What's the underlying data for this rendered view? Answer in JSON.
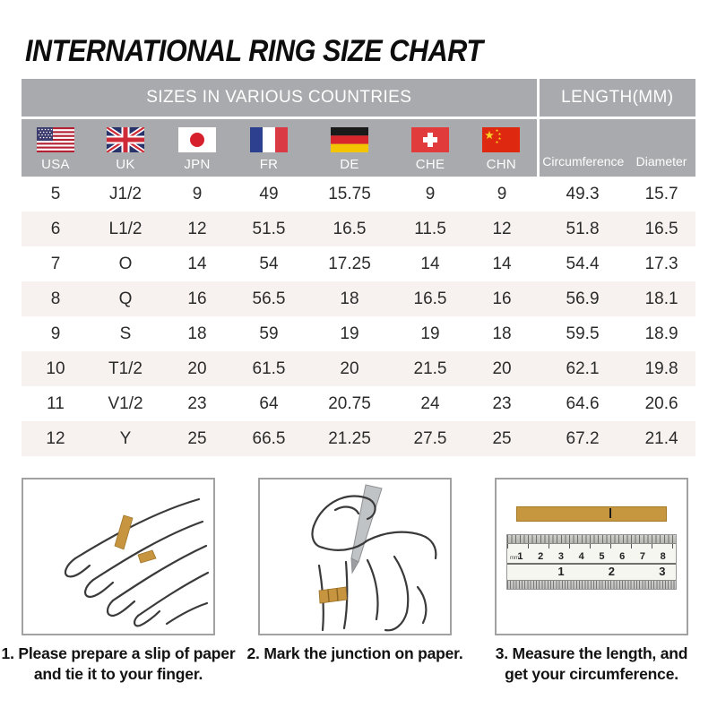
{
  "title": "INTERNATIONAL RING SIZE CHART",
  "table": {
    "sizes_header": "SIZES IN VARIOUS COUNTRIES",
    "length_header": "LENGTH(MM)",
    "countries": [
      {
        "code": "USA"
      },
      {
        "code": "UK"
      },
      {
        "code": "JPN"
      },
      {
        "code": "FR"
      },
      {
        "code": "DE"
      },
      {
        "code": "CHE"
      },
      {
        "code": "CHN"
      }
    ],
    "length_columns": [
      "Circumference",
      "Diameter"
    ],
    "rows": [
      [
        "5",
        "J1/2",
        "9",
        "49",
        "15.75",
        "9",
        "9",
        "49.3",
        "15.7"
      ],
      [
        "6",
        "L1/2",
        "12",
        "51.5",
        "16.5",
        "11.5",
        "12",
        "51.8",
        "16.5"
      ],
      [
        "7",
        "O",
        "14",
        "54",
        "17.25",
        "14",
        "14",
        "54.4",
        "17.3"
      ],
      [
        "8",
        "Q",
        "16",
        "56.5",
        "18",
        "16.5",
        "16",
        "56.9",
        "18.1"
      ],
      [
        "9",
        "S",
        "18",
        "59",
        "19",
        "19",
        "18",
        "59.5",
        "18.9"
      ],
      [
        "10",
        "T1/2",
        "20",
        "61.5",
        "20",
        "21.5",
        "20",
        "62.1",
        "19.8"
      ],
      [
        "11",
        "V1/2",
        "23",
        "64",
        "20.75",
        "24",
        "23",
        "64.6",
        "20.6"
      ],
      [
        "12",
        "Y",
        "25",
        "66.5",
        "21.25",
        "27.5",
        "25",
        "67.2",
        "21.4"
      ]
    ]
  },
  "steps": [
    {
      "caption": "1. Please prepare a slip of paper and tie it to your finger."
    },
    {
      "caption": "2. Mark the junction on paper."
    },
    {
      "caption": "3. Measure the length, and get your circumference."
    }
  ],
  "ruler": {
    "cm_numbers": [
      "1",
      "2",
      "3",
      "4",
      "5",
      "6",
      "7",
      "8"
    ],
    "inch_numbers": [
      "1",
      "2",
      "3"
    ],
    "cm_unit": "mm"
  },
  "colors": {
    "header_bg": "#a9aaad",
    "row_alt_bg": "#f7f2ef",
    "paper_gold": "#c6973f"
  }
}
